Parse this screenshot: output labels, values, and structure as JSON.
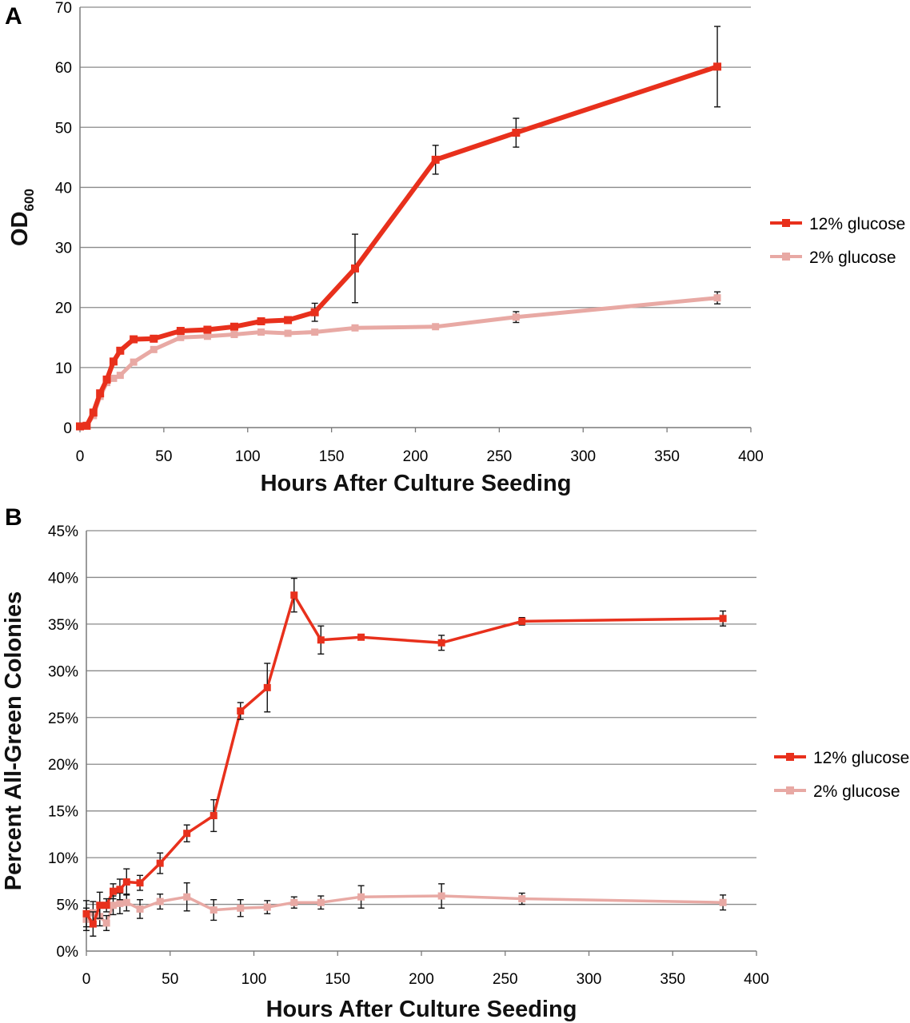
{
  "chart_data": [
    {
      "panel": "A",
      "type": "line",
      "xlabel": "Hours After Culture Seeding",
      "ylabel": {
        "main": "OD",
        "sub": "600"
      },
      "xlim": [
        0,
        400
      ],
      "ylim": [
        0,
        70
      ],
      "xticks": [
        "0",
        "50",
        "100",
        "150",
        "200",
        "250",
        "300",
        "350",
        "400"
      ],
      "yticks": [
        "0",
        "10",
        "20",
        "30",
        "40",
        "50",
        "60",
        "70"
      ],
      "grid": "horizontal",
      "legend_position": "right",
      "series": [
        {
          "name": "12% glucose",
          "color": "#e8301c",
          "x": [
            0,
            4,
            8,
            12,
            16,
            20,
            24,
            32,
            44,
            60,
            76,
            92,
            108,
            124,
            140,
            164,
            212,
            260,
            380
          ],
          "y": [
            0.2,
            0.3,
            2.5,
            5.7,
            8.0,
            11.0,
            12.8,
            14.7,
            14.8,
            16.1,
            16.3,
            16.8,
            17.7,
            17.9,
            19.2,
            26.5,
            44.6,
            49.1,
            60.1
          ],
          "err": [
            0,
            0,
            0,
            0,
            0,
            0,
            0,
            0,
            0,
            0,
            0,
            0,
            0,
            0,
            1.5,
            5.7,
            2.4,
            2.4,
            6.7
          ]
        },
        {
          "name": "2% glucose",
          "color": "#e8a9a4",
          "x": [
            0,
            4,
            8,
            12,
            16,
            20,
            24,
            32,
            44,
            60,
            76,
            92,
            108,
            124,
            140,
            164,
            212,
            260,
            380
          ],
          "y": [
            0.2,
            0.3,
            2.0,
            5.2,
            7.5,
            8.2,
            8.7,
            10.9,
            13.0,
            15.0,
            15.2,
            15.5,
            15.9,
            15.7,
            15.9,
            16.6,
            16.8,
            18.4,
            21.6
          ],
          "err": [
            0,
            0,
            0,
            0,
            0,
            0,
            0,
            0,
            0,
            0,
            0,
            0,
            0,
            0,
            0,
            0,
            0,
            0.9,
            1.0
          ]
        }
      ]
    },
    {
      "panel": "B",
      "type": "line",
      "xlabel": "Hours After Culture Seeding",
      "ylabel": "Percent All-Green Colonies",
      "xlim": [
        0,
        400
      ],
      "ylim": [
        0,
        0.45
      ],
      "xticks": [
        "0",
        "50",
        "100",
        "150",
        "200",
        "250",
        "300",
        "350",
        "400"
      ],
      "yticks": [
        "0%",
        "5%",
        "10%",
        "15%",
        "20%",
        "25%",
        "30%",
        "35%",
        "40%",
        "45%"
      ],
      "grid": "horizontal",
      "legend_position": "right",
      "series": [
        {
          "name": "12% glucose",
          "color": "#e8301c",
          "x": [
            0,
            4,
            8,
            12,
            16,
            20,
            24,
            32,
            44,
            60,
            76,
            92,
            108,
            124,
            140,
            164,
            212,
            260,
            380
          ],
          "y": [
            0.04,
            0.029,
            0.049,
            0.049,
            0.064,
            0.066,
            0.074,
            0.073,
            0.094,
            0.126,
            0.145,
            0.257,
            0.282,
            0.381,
            0.333,
            0.336,
            0.33,
            0.353,
            0.356
          ],
          "err": [
            0.014,
            0.013,
            0.014,
            0.007,
            0.008,
            0.011,
            0.014,
            0.008,
            0.011,
            0.009,
            0.017,
            0.009,
            0.026,
            0.018,
            0.015,
            0.003,
            0.008,
            0.004,
            0.008
          ]
        },
        {
          "name": "2% glucose",
          "color": "#e8a9a4",
          "x": [
            0,
            4,
            8,
            12,
            16,
            20,
            24,
            32,
            44,
            60,
            76,
            92,
            108,
            124,
            140,
            164,
            212,
            260,
            380
          ],
          "y": [
            0.034,
            0.041,
            0.037,
            0.03,
            0.049,
            0.051,
            0.052,
            0.045,
            0.053,
            0.058,
            0.044,
            0.046,
            0.047,
            0.052,
            0.052,
            0.058,
            0.059,
            0.056,
            0.052
          ],
          "err": [
            0.012,
            0.012,
            0.01,
            0.008,
            0.01,
            0.011,
            0.009,
            0.01,
            0.008,
            0.015,
            0.011,
            0.009,
            0.007,
            0.006,
            0.007,
            0.012,
            0.013,
            0.006,
            0.008
          ]
        }
      ]
    }
  ]
}
